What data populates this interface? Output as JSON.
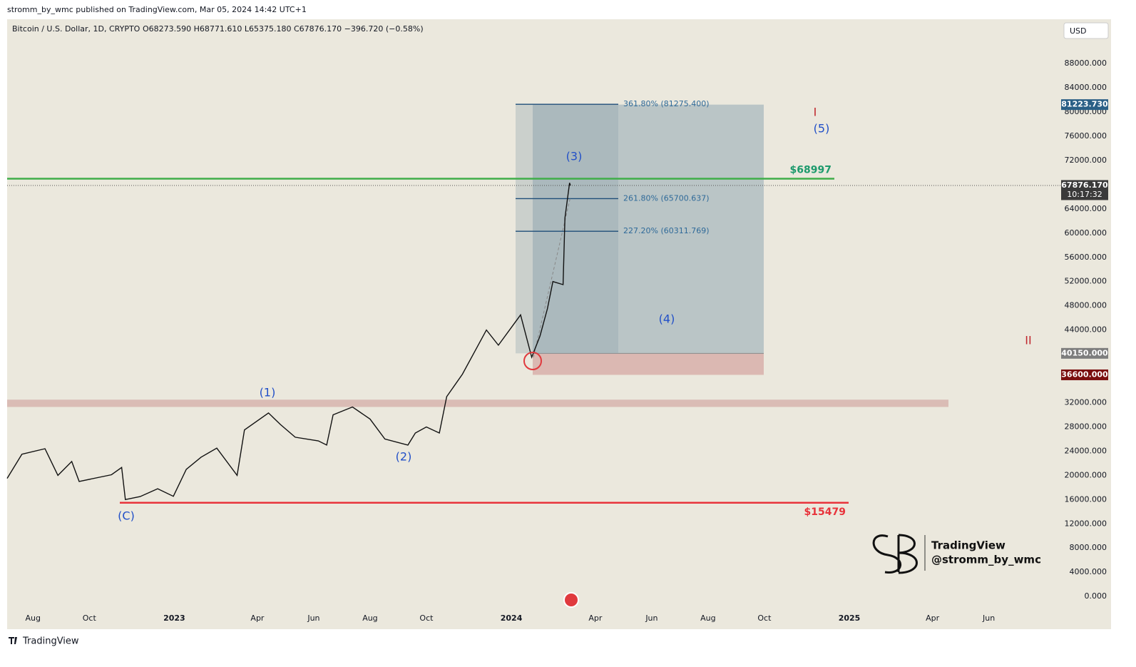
{
  "header": {
    "publisher": "stromm_by_wmc published on TradingView.com, Mar 05, 2024 14:42 UTC+1",
    "footer": "TradingView"
  },
  "chart_data": {
    "type": "line",
    "title": "Bitcoin / U.S. Dollar, 1D, CRYPTO",
    "ohlc": "O68273.590 H68771.610 L65375.180 C67876.170 −396.720 (−0.58%)",
    "currency": "USD",
    "color": "#111111",
    "x": [
      "2022-07-04",
      "2022-07-20",
      "2022-08-14",
      "2022-08-28",
      "2022-09-12",
      "2022-09-20",
      "2022-10-25",
      "2022-11-05",
      "2022-11-09",
      "2022-11-25",
      "2022-12-14",
      "2022-12-31",
      "2023-01-14",
      "2023-01-30",
      "2023-02-16",
      "2023-03-10",
      "2023-03-18",
      "2023-04-13",
      "2023-04-26",
      "2023-05-12",
      "2023-06-06",
      "2023-06-15",
      "2023-06-22",
      "2023-07-13",
      "2023-08-01",
      "2023-08-17",
      "2023-09-11",
      "2023-09-19",
      "2023-10-01",
      "2023-10-15",
      "2023-10-23",
      "2023-11-09",
      "2023-12-05",
      "2023-12-18",
      "2024-01-11",
      "2024-01-23",
      "2024-02-01",
      "2024-02-09",
      "2024-02-15",
      "2024-02-26",
      "2024-02-28",
      "2024-03-04",
      "2024-03-05"
    ],
    "values": [
      19500,
      23500,
      24400,
      20000,
      22300,
      19000,
      20100,
      21300,
      16000,
      16500,
      17800,
      16550,
      21000,
      23000,
      24500,
      20000,
      27500,
      30300,
      28400,
      26300,
      25700,
      25000,
      30000,
      31300,
      29300,
      26000,
      25000,
      27000,
      28000,
      27000,
      33000,
      36700,
      44000,
      41500,
      46500,
      39500,
      43000,
      47500,
      52000,
      51500,
      62500,
      68300,
      67876.17
    ],
    "xlim": [
      "2022-07-04",
      "2025-08-16"
    ],
    "xticks": [
      {
        "value": "2022-08-01",
        "label": "Aug"
      },
      {
        "value": "2022-10-01",
        "label": "Oct"
      },
      {
        "value": "2023-01-01",
        "label": "2023"
      },
      {
        "value": "2023-04-01",
        "label": "Apr"
      },
      {
        "value": "2023-06-01",
        "label": "Jun"
      },
      {
        "value": "2023-08-01",
        "label": "Aug"
      },
      {
        "value": "2023-10-01",
        "label": "Oct"
      },
      {
        "value": "2024-01-01",
        "label": "2024"
      },
      {
        "value": "2024-04-01",
        "label": "Apr"
      },
      {
        "value": "2024-06-01",
        "label": "Jun"
      },
      {
        "value": "2024-08-01",
        "label": "Aug"
      },
      {
        "value": "2024-10-01",
        "label": "Oct"
      },
      {
        "value": "2025-01-01",
        "label": "2025"
      },
      {
        "value": "2025-04-01",
        "label": "Apr"
      },
      {
        "value": "2025-06-01",
        "label": "Jun"
      }
    ],
    "ylim": [
      -5400,
      95200
    ],
    "yticks": [
      {
        "value": 0,
        "label": "0.000"
      },
      {
        "value": 4000,
        "label": "4000.000"
      },
      {
        "value": 8000,
        "label": "8000.000"
      },
      {
        "value": 12000,
        "label": "12000.000"
      },
      {
        "value": 16000,
        "label": "16000.000"
      },
      {
        "value": 20000,
        "label": "20000.000"
      },
      {
        "value": 24000,
        "label": "24000.000"
      },
      {
        "value": 28000,
        "label": "28000.000"
      },
      {
        "value": 32000,
        "label": "32000.000"
      },
      {
        "value": 44000,
        "label": "44000.000"
      },
      {
        "value": 48000,
        "label": "48000.000"
      },
      {
        "value": 52000,
        "label": "52000.000"
      },
      {
        "value": 56000,
        "label": "56000.000"
      },
      {
        "value": 60000,
        "label": "60000.000"
      },
      {
        "value": 64000,
        "label": "64000.000"
      },
      {
        "value": 72000,
        "label": "72000.000"
      },
      {
        "value": 76000,
        "label": "76000.000"
      },
      {
        "value": 80000,
        "label": "80000.000"
      },
      {
        "value": 84000,
        "label": "84000.000"
      },
      {
        "value": 88000,
        "label": "88000.000"
      }
    ],
    "price_labels": [
      {
        "value": 81223.73,
        "label": "81223.730",
        "color": "#2a5f86"
      },
      {
        "value": 67876.17,
        "label": "67876.170",
        "color": "#3a3a3a",
        "time": "10:17:32"
      },
      {
        "value": 40150,
        "label": "40150.000",
        "color": "#7d7d7d"
      },
      {
        "value": 36600,
        "label": "36600.000",
        "color": "#7a0e0e"
      }
    ],
    "levels": [
      {
        "value": 68997,
        "label": "$68997",
        "color": "#3fae49",
        "text_color": "#1d9a6c"
      },
      {
        "value": 15479,
        "label": "$15479",
        "color": "#e8333b",
        "text_color": "#e8333b"
      }
    ],
    "zone": [
      31300,
      32500
    ],
    "position": {
      "entry": 40150,
      "stop": 36600,
      "target": 81223.73
    },
    "fib_levels": [
      {
        "value": 81275.4,
        "label": "361.80% (81275.400)"
      },
      {
        "value": 65700.637,
        "label": "261.80% (65700.637)"
      },
      {
        "value": 60311.769,
        "label": "227.20% (60311.769)"
      }
    ],
    "waves": [
      {
        "label": "(C)",
        "color": "#2250c8"
      },
      {
        "label": "(1)",
        "color": "#2250c8"
      },
      {
        "label": "(2)",
        "color": "#2250c8"
      },
      {
        "label": "(3)",
        "color": "#2250c8"
      },
      {
        "label": "(4)",
        "color": "#2250c8"
      },
      {
        "label": "(5)",
        "color": "#2250c8"
      },
      {
        "label": "I",
        "color": "#c0282e"
      },
      {
        "label": "II",
        "color": "#c0282e"
      }
    ],
    "watermark": [
      "TradingView",
      "@stromm_by_wmc"
    ]
  }
}
